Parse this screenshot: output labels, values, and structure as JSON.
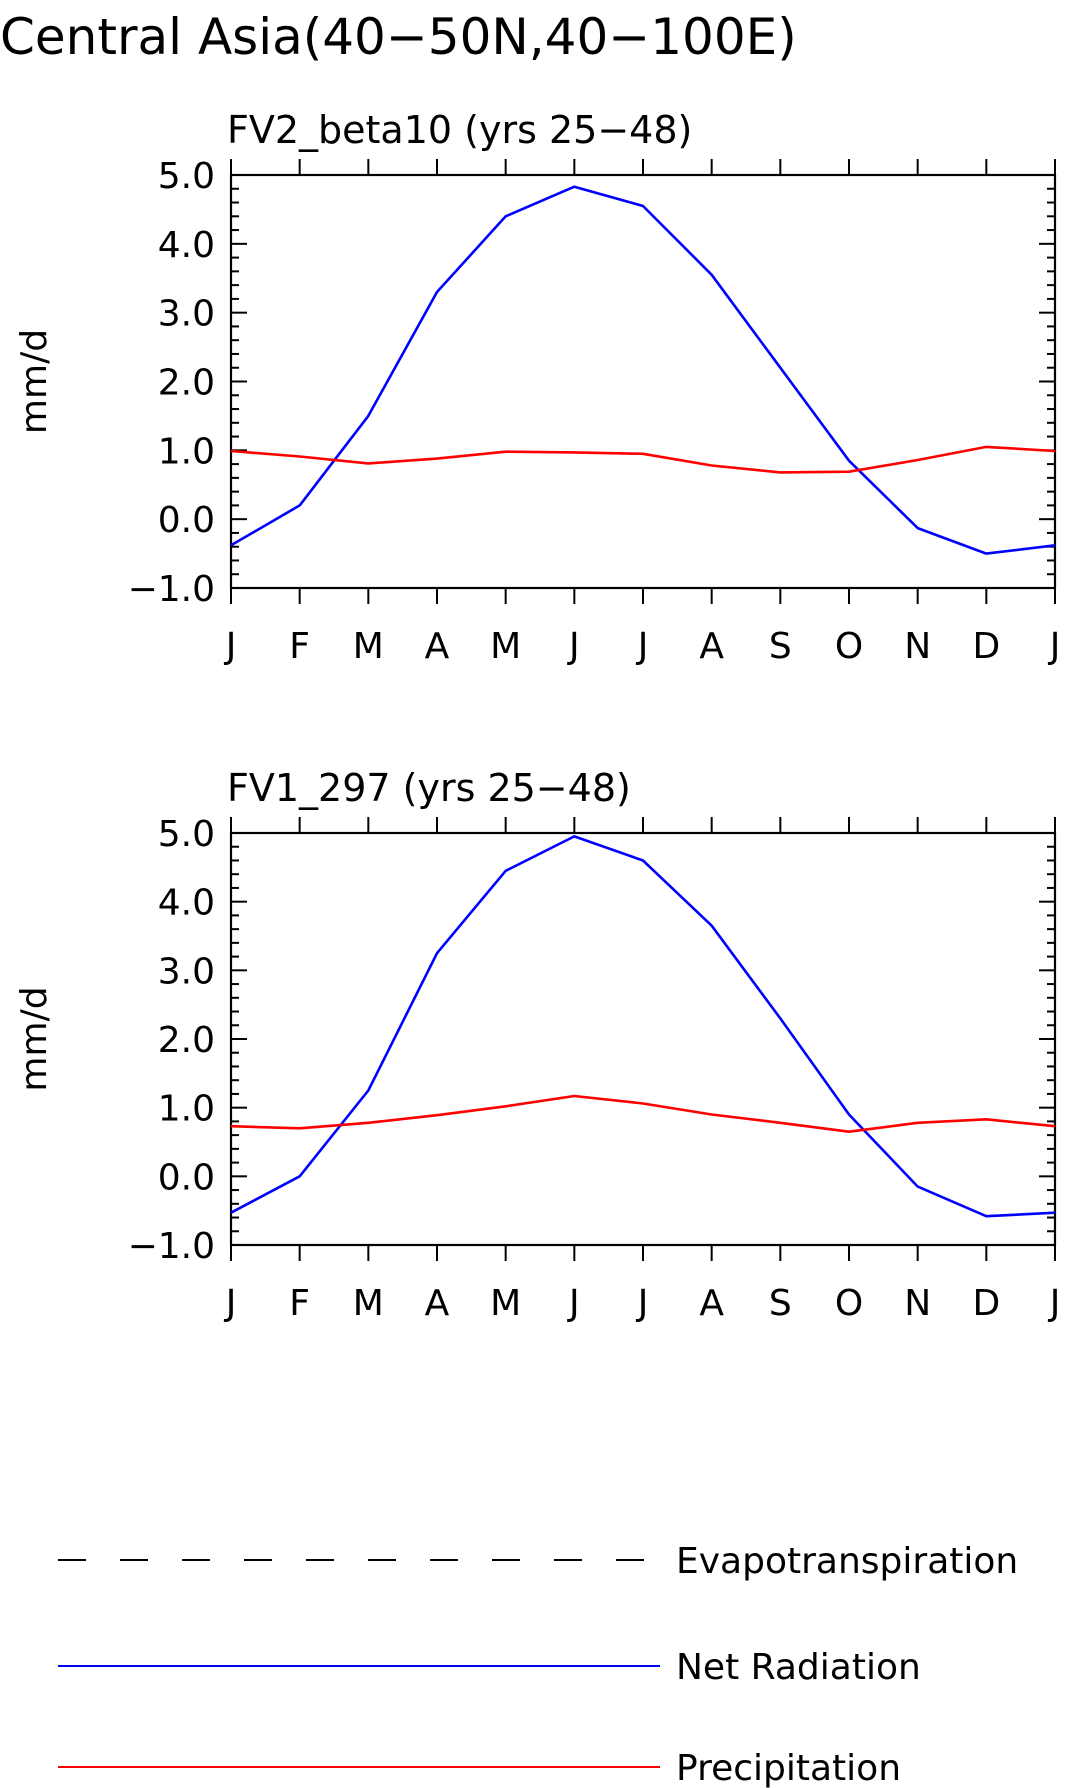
{
  "figure": {
    "title": "Central Asia(40−50N,40−100E)"
  },
  "legend": {
    "entries": [
      {
        "label": "Evapotranspiration",
        "style": "dashed",
        "color": "#000000"
      },
      {
        "label": "Net Radiation",
        "style": "solid",
        "color": "#0000ff"
      },
      {
        "label": "Precipitation",
        "style": "solid",
        "color": "#ff0000"
      }
    ]
  },
  "colors": {
    "net_radiation": "#0000ff",
    "precipitation": "#ff0000",
    "axes": "#000000"
  },
  "chart_data": [
    {
      "type": "line",
      "title": "FV2_beta10 (yrs 25−48)",
      "ylabel": "mm/d",
      "xlabel": "",
      "categories": [
        "J",
        "F",
        "M",
        "A",
        "M",
        "J",
        "J",
        "A",
        "S",
        "O",
        "N",
        "D",
        "J"
      ],
      "ylim": [
        -1.0,
        5.0
      ],
      "yticks": [
        -1.0,
        0.0,
        1.0,
        2.0,
        3.0,
        4.0,
        5.0
      ],
      "ytick_labels": [
        "−1.0",
        "0.0",
        "1.0",
        "2.0",
        "3.0",
        "4.0",
        "5.0"
      ],
      "grid": false,
      "series": [
        {
          "name": "Net Radiation",
          "color": "#0000ff",
          "values": [
            -0.38,
            0.2,
            1.5,
            3.3,
            4.4,
            4.83,
            4.55,
            3.55,
            2.2,
            0.85,
            -0.13,
            -0.5,
            -0.38
          ]
        },
        {
          "name": "Precipitation",
          "color": "#ff0000",
          "values": [
            0.99,
            0.91,
            0.81,
            0.88,
            0.98,
            0.97,
            0.95,
            0.78,
            0.68,
            0.69,
            0.86,
            1.05,
            0.99
          ]
        }
      ]
    },
    {
      "type": "line",
      "title": "FV1_297 (yrs 25−48)",
      "ylabel": "mm/d",
      "xlabel": "",
      "categories": [
        "J",
        "F",
        "M",
        "A",
        "M",
        "J",
        "J",
        "A",
        "S",
        "O",
        "N",
        "D",
        "J"
      ],
      "ylim": [
        -1.0,
        5.0
      ],
      "yticks": [
        -1.0,
        0.0,
        1.0,
        2.0,
        3.0,
        4.0,
        5.0
      ],
      "ytick_labels": [
        "−1.0",
        "0.0",
        "1.0",
        "2.0",
        "3.0",
        "4.0",
        "5.0"
      ],
      "grid": false,
      "series": [
        {
          "name": "Net Radiation",
          "color": "#0000ff",
          "values": [
            -0.53,
            0.0,
            1.25,
            3.25,
            4.45,
            4.95,
            4.6,
            3.65,
            2.3,
            0.9,
            -0.15,
            -0.58,
            -0.53
          ]
        },
        {
          "name": "Precipitation",
          "color": "#ff0000",
          "values": [
            0.73,
            0.7,
            0.78,
            0.89,
            1.02,
            1.17,
            1.06,
            0.9,
            0.78,
            0.65,
            0.78,
            0.83,
            0.73
          ]
        }
      ]
    }
  ]
}
